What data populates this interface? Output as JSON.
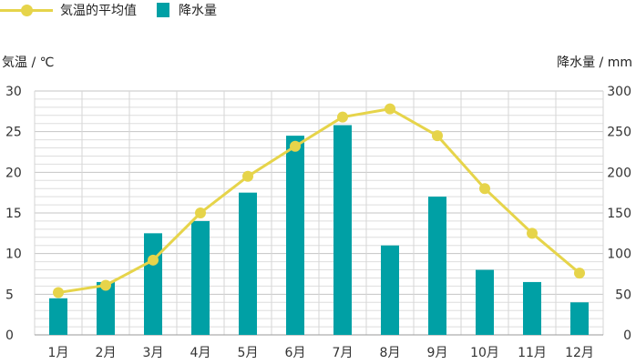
{
  "chart_data": {
    "type": "bar+line",
    "categories": [
      "1月",
      "2月",
      "3月",
      "4月",
      "5月",
      "6月",
      "7月",
      "8月",
      "9月",
      "10月",
      "11月",
      "12月"
    ],
    "series": [
      {
        "name": "気温的平均值",
        "type": "line",
        "axis": "left",
        "values": [
          5.2,
          6.1,
          9.2,
          15.0,
          19.5,
          23.2,
          26.8,
          27.8,
          24.5,
          18.0,
          12.5,
          7.6
        ]
      },
      {
        "name": "降水量",
        "type": "bar",
        "axis": "right",
        "values": [
          45,
          65,
          125,
          140,
          175,
          245,
          258,
          110,
          170,
          80,
          65,
          40
        ]
      }
    ],
    "ylabel_left": "気温 / ℃",
    "ylabel_right": "降水量 / mm",
    "ylim_left": [
      0,
      30
    ],
    "ylim_right": [
      0,
      300
    ],
    "yticks_left": [
      0,
      5,
      10,
      15,
      20,
      25,
      30
    ],
    "yticks_right": [
      0,
      50,
      100,
      150,
      200,
      250,
      300
    ],
    "legend_position": "top-left",
    "grid": true,
    "colors": {
      "line": "#e6d44a",
      "bar": "#00a0a5",
      "grid": "#cfcfcf",
      "axis": "#999999"
    }
  }
}
